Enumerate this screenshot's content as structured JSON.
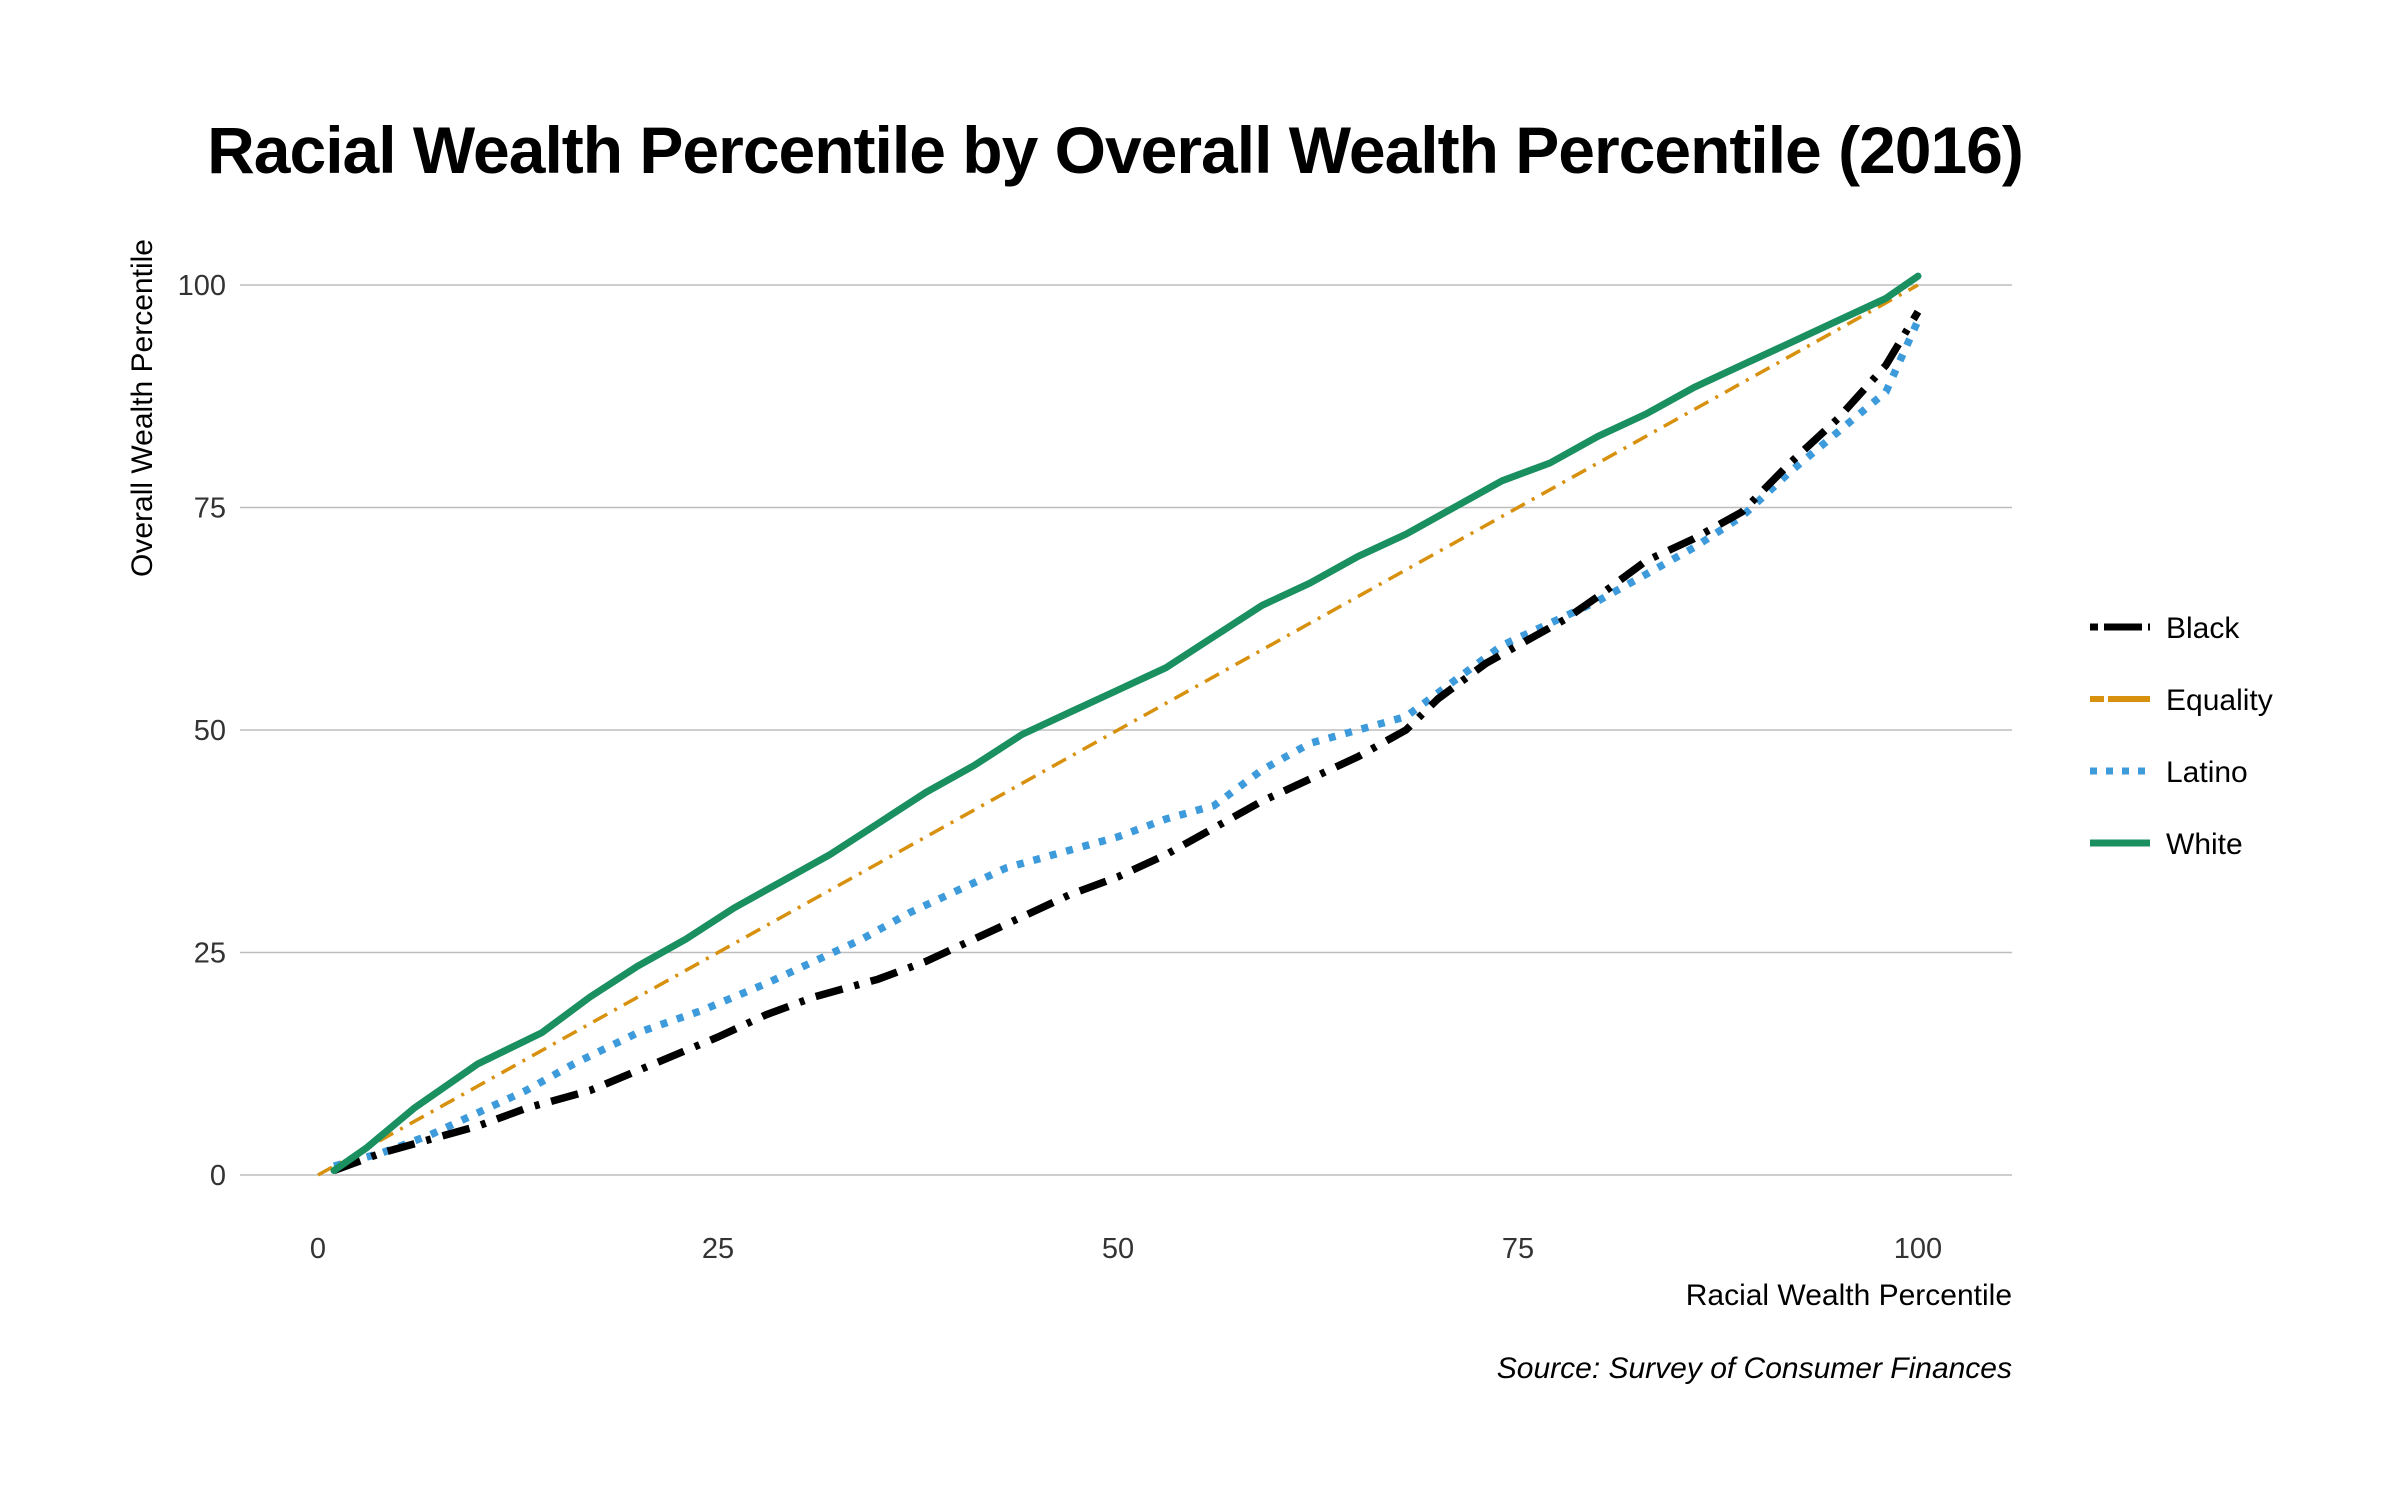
{
  "chart_data": {
    "type": "line",
    "title": "Racial Wealth Percentile by Overall Wealth Percentile (2016)",
    "xlabel": "Racial Wealth Percentile",
    "ylabel": "Overall Wealth Percentile",
    "source": "Source: Survey of Consumer Finances",
    "xlim": [
      0,
      106
    ],
    "ylim": [
      0,
      102
    ],
    "xticks": [
      0,
      25,
      50,
      75,
      100
    ],
    "yticks": [
      0,
      25,
      50,
      75,
      100
    ],
    "grid": "horizontal",
    "legend_position": "right",
    "series": [
      {
        "name": "Black",
        "color": "#000000",
        "style": "dash-dot",
        "points": [
          [
            1,
            0.5
          ],
          [
            4,
            2.5
          ],
          [
            7,
            4
          ],
          [
            10,
            5.5
          ],
          [
            13,
            7.5
          ],
          [
            17,
            9.5
          ],
          [
            21,
            12.5
          ],
          [
            25,
            15.5
          ],
          [
            28,
            18
          ],
          [
            31,
            20
          ],
          [
            35,
            22
          ],
          [
            38,
            24
          ],
          [
            41,
            26.5
          ],
          [
            44,
            29
          ],
          [
            47,
            31.5
          ],
          [
            50,
            33.5
          ],
          [
            53,
            36
          ],
          [
            56,
            39
          ],
          [
            59,
            42
          ],
          [
            62,
            44.5
          ],
          [
            65,
            47
          ],
          [
            68,
            50
          ],
          [
            70,
            53.5
          ],
          [
            73,
            57.5
          ],
          [
            75,
            59.5
          ],
          [
            78,
            62.5
          ],
          [
            80,
            65
          ],
          [
            83,
            69
          ],
          [
            86,
            71.5
          ],
          [
            89,
            74.5
          ],
          [
            92,
            80
          ],
          [
            95,
            85
          ],
          [
            98,
            91
          ],
          [
            100,
            97
          ]
        ]
      },
      {
        "name": "Equality",
        "color": "#D8910E",
        "style": "dash-dot-thin",
        "points": [
          [
            0,
            0
          ],
          [
            100,
            100
          ]
        ]
      },
      {
        "name": "Latino",
        "color": "#3E9BDB",
        "style": "dotted",
        "points": [
          [
            1,
            1
          ],
          [
            4,
            2.5
          ],
          [
            7,
            4.5
          ],
          [
            10,
            7
          ],
          [
            13,
            9.5
          ],
          [
            16,
            12.5
          ],
          [
            20,
            16
          ],
          [
            24,
            18.5
          ],
          [
            28,
            21.5
          ],
          [
            31,
            24
          ],
          [
            34,
            26.5
          ],
          [
            37,
            29.5
          ],
          [
            40,
            32
          ],
          [
            43,
            34.5
          ],
          [
            47,
            36.5
          ],
          [
            50,
            38
          ],
          [
            53,
            40
          ],
          [
            56,
            41.5
          ],
          [
            59,
            45.5
          ],
          [
            62,
            48.5
          ],
          [
            65,
            50
          ],
          [
            68,
            51.5
          ],
          [
            71,
            55.5
          ],
          [
            74,
            59.5
          ],
          [
            77,
            62
          ],
          [
            80,
            64.5
          ],
          [
            83,
            67.5
          ],
          [
            86,
            70.5
          ],
          [
            89,
            74
          ],
          [
            92,
            79
          ],
          [
            95,
            83.5
          ],
          [
            98,
            88
          ],
          [
            100,
            96
          ]
        ]
      },
      {
        "name": "White",
        "color": "#1A8F60",
        "style": "solid",
        "points": [
          [
            1,
            0.5
          ],
          [
            3,
            3
          ],
          [
            6,
            7.5
          ],
          [
            10,
            12.5
          ],
          [
            14,
            16
          ],
          [
            17,
            20
          ],
          [
            20,
            23.5
          ],
          [
            23,
            26.5
          ],
          [
            26,
            30
          ],
          [
            29,
            33
          ],
          [
            32,
            36
          ],
          [
            35,
            39.5
          ],
          [
            38,
            43
          ],
          [
            41,
            46
          ],
          [
            44,
            49.5
          ],
          [
            47,
            52
          ],
          [
            50,
            54.5
          ],
          [
            53,
            57
          ],
          [
            56,
            60.5
          ],
          [
            59,
            64
          ],
          [
            62,
            66.5
          ],
          [
            65,
            69.5
          ],
          [
            68,
            72
          ],
          [
            71,
            75
          ],
          [
            74,
            78
          ],
          [
            77,
            80
          ],
          [
            80,
            83
          ],
          [
            83,
            85.5
          ],
          [
            86,
            88.5
          ],
          [
            89,
            91
          ],
          [
            92,
            93.5
          ],
          [
            95,
            96
          ],
          [
            98,
            98.5
          ],
          [
            100,
            101
          ]
        ]
      }
    ]
  }
}
